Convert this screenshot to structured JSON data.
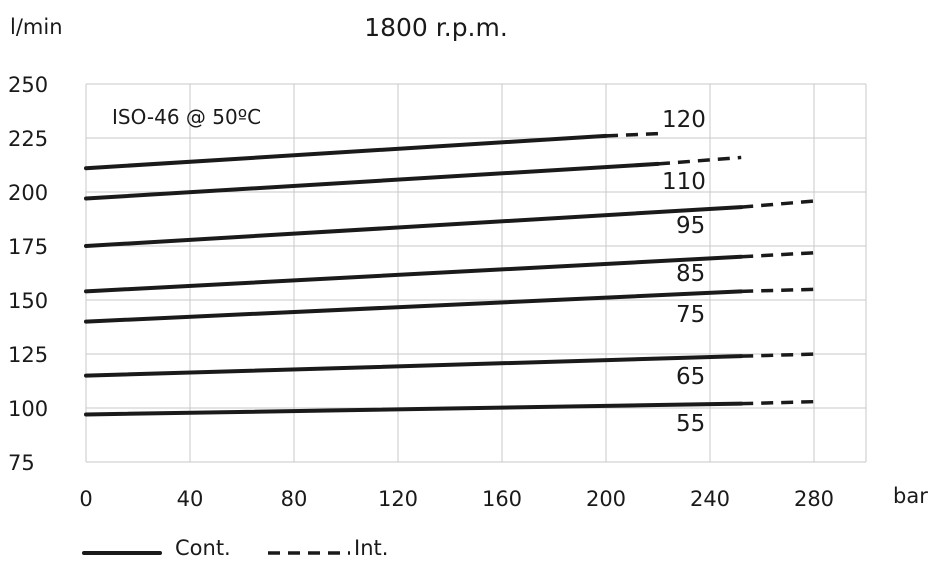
{
  "chart_data": {
    "type": "line",
    "title": "1800 r.p.m.",
    "ylabel": "l/min",
    "xlabel": "bar",
    "annotation": "ISO-46 @ 50ºC",
    "xlim": [
      0,
      300
    ],
    "ylim": [
      75,
      250
    ],
    "x_ticks": [
      0,
      40,
      80,
      120,
      160,
      200,
      240,
      280
    ],
    "y_ticks": [
      75,
      100,
      125,
      150,
      175,
      200,
      225,
      250
    ],
    "grid": true,
    "legend": {
      "placement": "bottom-left",
      "entries": [
        {
          "label": "Cont.",
          "style": "solid"
        },
        {
          "label": "Int.",
          "style": "dashed"
        }
      ]
    },
    "series": [
      {
        "name": "120",
        "cont": {
          "x": [
            0,
            200
          ],
          "y": [
            211,
            226
          ]
        },
        "int": {
          "x": [
            200,
            220
          ],
          "y": [
            226,
            227
          ]
        }
      },
      {
        "name": "110",
        "cont": {
          "x": [
            0,
            220
          ],
          "y": [
            197,
            213
          ]
        },
        "int": {
          "x": [
            220,
            252
          ],
          "y": [
            213,
            216
          ]
        }
      },
      {
        "name": "95",
        "cont": {
          "x": [
            0,
            252
          ],
          "y": [
            175,
            193
          ]
        },
        "int": {
          "x": [
            252,
            282
          ],
          "y": [
            193,
            196
          ]
        }
      },
      {
        "name": "85",
        "cont": {
          "x": [
            0,
            252
          ],
          "y": [
            154,
            170
          ]
        },
        "int": {
          "x": [
            252,
            282
          ],
          "y": [
            170,
            172
          ]
        }
      },
      {
        "name": "75",
        "cont": {
          "x": [
            0,
            252
          ],
          "y": [
            140,
            154
          ]
        },
        "int": {
          "x": [
            252,
            282
          ],
          "y": [
            154,
            155
          ]
        }
      },
      {
        "name": "65",
        "cont": {
          "x": [
            0,
            252
          ],
          "y": [
            115,
            124
          ]
        },
        "int": {
          "x": [
            252,
            282
          ],
          "y": [
            124,
            125
          ]
        }
      },
      {
        "name": "55",
        "cont": {
          "x": [
            0,
            252
          ],
          "y": [
            97,
            102
          ]
        },
        "int": {
          "x": [
            252,
            282
          ],
          "y": [
            102,
            103
          ]
        }
      }
    ]
  }
}
